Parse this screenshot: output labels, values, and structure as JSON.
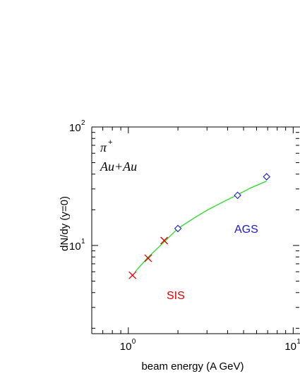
{
  "chart_data": {
    "type": "scatter",
    "title": "",
    "xlabel": "beam energy (A GeV)",
    "ylabel": "dN/dy (y=0)",
    "xscale": "log",
    "yscale": "log",
    "xlim": [
      0.6,
      11
    ],
    "ylim": [
      1.8,
      100
    ],
    "x_tick_labels": [
      {
        "base": "10",
        "exp": "0",
        "value": 1
      },
      {
        "base": "10",
        "exp": "1",
        "value": 10
      }
    ],
    "y_tick_labels": [
      {
        "base": "10",
        "exp": "1",
        "value": 10
      },
      {
        "base": "10",
        "exp": "2",
        "value": 100
      }
    ],
    "grid": false,
    "annotations": {
      "particle": "π",
      "particle_charge": "+",
      "system": "Au+Au"
    },
    "series": [
      {
        "name": "SIS",
        "marker": "x",
        "color": "#e00000",
        "x": [
          1.06,
          1.32,
          1.65
        ],
        "y": [
          5.6,
          7.8,
          11.0
        ]
      },
      {
        "name": "AGS",
        "marker": "diamond",
        "color": "#1a1ad0",
        "x": [
          2.0,
          4.6,
          6.9
        ],
        "y": [
          13.9,
          26.5,
          38.0
        ]
      },
      {
        "name": "",
        "marker": "line",
        "color": "#22dd22",
        "x": [
          1.1,
          1.3,
          1.6,
          2.0,
          2.5,
          3.0,
          3.8,
          4.6,
          5.5,
          6.9
        ],
        "y": [
          6.0,
          7.8,
          10.3,
          13.9,
          17.0,
          19.8,
          23.5,
          26.8,
          30.5,
          35.0
        ]
      }
    ]
  }
}
